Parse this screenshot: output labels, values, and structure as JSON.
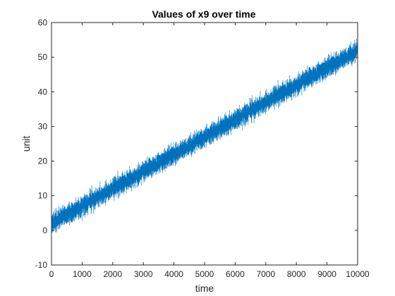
{
  "chart_data": {
    "type": "line",
    "title": "Values of x9 over time",
    "xlabel": "time",
    "ylabel": "unit",
    "xlim": [
      0,
      10000
    ],
    "ylim": [
      -10,
      60
    ],
    "xticks": [
      0,
      1000,
      2000,
      3000,
      4000,
      5000,
      6000,
      7000,
      8000,
      9000,
      10000
    ],
    "yticks": [
      -10,
      0,
      10,
      20,
      30,
      40,
      50,
      60
    ],
    "grid": false,
    "series": [
      {
        "color": "#0072BD",
        "n_points": 10000,
        "trend_start": 2,
        "trend_end": 52,
        "noise_band_halfwidth": 4,
        "observed_min": -4,
        "observed_max": 57
      }
    ]
  }
}
